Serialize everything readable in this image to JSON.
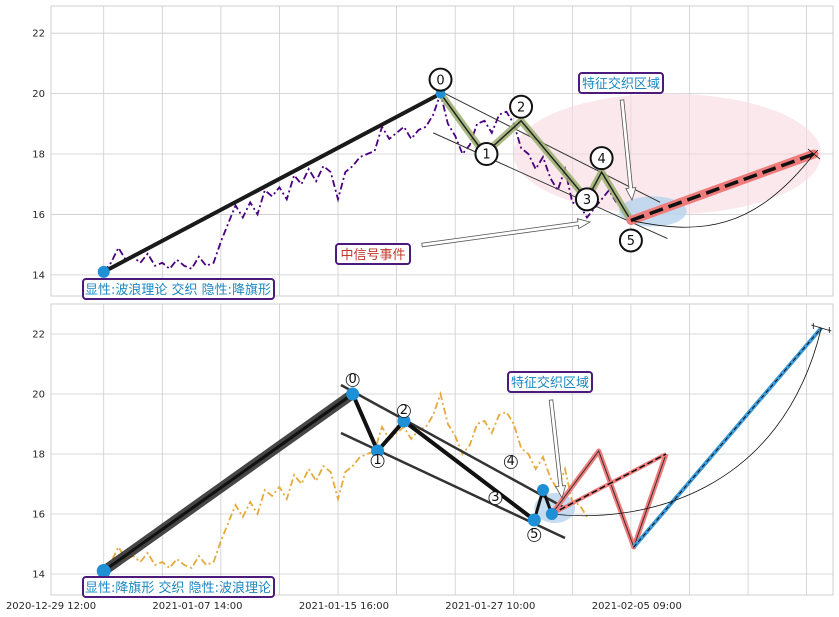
{
  "chart_data": [
    {
      "type": "line",
      "panel": "top",
      "ylim": [
        13.3,
        22.9
      ],
      "xlim": [
        -2.6,
        50.8
      ],
      "yticks": [
        14,
        16,
        18,
        20,
        22
      ],
      "grid": true,
      "price_series": {
        "style": "dash-dot",
        "color": "#4b0082",
        "x": [
          1,
          1.5,
          2,
          2.5,
          3,
          3.5,
          4,
          4.5,
          5,
          5.5,
          6,
          6.5,
          7,
          7.5,
          8,
          8.5,
          9,
          9.5,
          10,
          10.5,
          11,
          11.5,
          12,
          12.5,
          13,
          13.5,
          14,
          14.5,
          15,
          15.5,
          16,
          16.5,
          17,
          17.5,
          18,
          18.5,
          19,
          19.5,
          20,
          20.5,
          21,
          21.5,
          22,
          22.5,
          23,
          23.5,
          24,
          24.5,
          25,
          25.5,
          26,
          26.5,
          27,
          27.5,
          28,
          28.5,
          29,
          29.5,
          30,
          30.5,
          31,
          31.5,
          32,
          32.5,
          33,
          33.5,
          34,
          34.5,
          35,
          35.5,
          36
        ],
        "y": [
          14.1,
          14.4,
          14.9,
          14.5,
          14.6,
          14.4,
          14.7,
          14.3,
          14.4,
          14.2,
          14.5,
          14.3,
          14.2,
          14.6,
          14.3,
          14.4,
          15.1,
          15.7,
          16.3,
          15.9,
          16.4,
          16.0,
          16.8,
          16.6,
          16.9,
          16.5,
          17.3,
          17.0,
          17.5,
          17.1,
          17.6,
          17.4,
          16.5,
          17.4,
          17.6,
          17.9,
          18.0,
          18.1,
          18.9,
          18.5,
          18.7,
          18.9,
          18.5,
          18.8,
          18.9,
          19.3,
          20.0,
          19.0,
          18.6,
          18.0,
          18.3,
          19.0,
          19.1,
          18.7,
          19.3,
          19.4,
          19.0,
          18.2,
          18.0,
          17.5,
          17.9,
          17.2,
          16.8,
          17.5,
          16.4,
          16.3,
          15.9,
          16.2,
          16.5,
          16.8,
          16.4
        ]
      },
      "wave_points": [
        {
          "label": "0",
          "x": 24,
          "y": 20.0
        },
        {
          "label": "1",
          "x": 27,
          "y": 18.0
        },
        {
          "label": "2",
          "x": 29.5,
          "y": 19.1
        },
        {
          "label": "3",
          "x": 34,
          "y": 16.5
        },
        {
          "label": "4",
          "x": 35,
          "y": 17.4
        },
        {
          "label": "5",
          "x": 37,
          "y": 15.8
        }
      ],
      "trend_line": {
        "x": [
          1,
          24
        ],
        "y": [
          14.1,
          20.0
        ]
      },
      "channel_upper": {
        "x": [
          23.5,
          39
        ],
        "y": [
          20.2,
          16.4
        ]
      },
      "channel_lower": {
        "x": [
          23.5,
          39.5
        ],
        "y": [
          18.7,
          15.2
        ]
      },
      "forecast": {
        "x": [
          37,
          49.5
        ],
        "y": [
          15.8,
          18.0
        ]
      },
      "target_point": {
        "x": 49.5,
        "y": 18.0
      },
      "ellipse": {
        "cx": 39.5,
        "cy": 18.0,
        "rx": 10.5,
        "ry": 2.0
      },
      "feature_zone": {
        "cx": 38.5,
        "cy": 16.1,
        "rx": 2.3,
        "ry": 0.5
      },
      "annotations": {
        "feature": "特征交织区域",
        "signal": "中信号事件",
        "bottom_label": "显性:波浪理论 交织 隐性:降旗形"
      }
    },
    {
      "type": "line",
      "panel": "bottom",
      "ylim": [
        13.3,
        23.0
      ],
      "xlim": [
        -2.6,
        50.8
      ],
      "yticks": [
        14,
        16,
        18,
        20,
        22
      ],
      "xticks": [
        {
          "x": -2.6,
          "label": "2020-12-29 12:00"
        },
        {
          "x": 7.4,
          "label": "2021-01-07 14:00"
        },
        {
          "x": 17.4,
          "label": "2021-01-15 16:00"
        },
        {
          "x": 27.4,
          "label": "2021-01-27 10:00"
        },
        {
          "x": 37.4,
          "label": "2021-02-05 09:00"
        }
      ],
      "grid": true,
      "price_series": {
        "style": "dash-dot",
        "color": "#e6a93b",
        "x": [
          1,
          1.5,
          2,
          2.5,
          3,
          3.5,
          4,
          4.5,
          5,
          5.5,
          6,
          6.5,
          7,
          7.5,
          8,
          8.5,
          9,
          9.5,
          10,
          10.5,
          11,
          11.5,
          12,
          12.5,
          13,
          13.5,
          14,
          14.5,
          15,
          15.5,
          16,
          16.5,
          17,
          17.5,
          18,
          18.5,
          19,
          19.5,
          20,
          20.5,
          21,
          21.5,
          22,
          22.5,
          23,
          23.5,
          24,
          24.5,
          25,
          25.5,
          26,
          26.5,
          27,
          27.5,
          28,
          28.5,
          29,
          29.5,
          30,
          30.5,
          31,
          31.5,
          32,
          32.5,
          33,
          33.5,
          34
        ],
        "y": [
          14.1,
          14.4,
          14.9,
          14.5,
          14.6,
          14.4,
          14.7,
          14.3,
          14.4,
          14.2,
          14.5,
          14.3,
          14.2,
          14.6,
          14.3,
          14.4,
          15.1,
          15.7,
          16.3,
          15.9,
          16.4,
          16.0,
          16.8,
          16.6,
          16.9,
          16.5,
          17.3,
          17.0,
          17.5,
          17.1,
          17.6,
          17.4,
          16.5,
          17.4,
          17.6,
          17.9,
          18.0,
          18.1,
          18.9,
          18.5,
          18.7,
          18.9,
          18.5,
          18.8,
          18.9,
          19.3,
          20.0,
          19.0,
          18.6,
          18.0,
          18.3,
          19.0,
          19.1,
          18.7,
          19.3,
          19.4,
          19.0,
          18.2,
          18.0,
          17.5,
          17.9,
          17.2,
          16.8,
          17.5,
          16.4,
          16.3,
          15.9
        ]
      },
      "wave_points": [
        {
          "label": "0",
          "x": 18,
          "y": 20.0
        },
        {
          "label": "1",
          "x": 19.7,
          "y": 18.1
        },
        {
          "label": "2",
          "x": 21.5,
          "y": 19.1
        },
        {
          "label": "3",
          "x": 28.5,
          "y": 16.4
        },
        {
          "label": "4",
          "x": 28.8,
          "y": 17.4
        },
        {
          "label": "5",
          "x": 30.4,
          "y": 15.8
        }
      ],
      "inner_points": [
        {
          "x": 31.0,
          "y": 16.8
        },
        {
          "x": 31.6,
          "y": 16.0
        }
      ],
      "trend_line": {
        "x": [
          1,
          18
        ],
        "y": [
          14.1,
          20.0
        ]
      },
      "zigzag": {
        "x": [
          18,
          19.7,
          21.5,
          30.4
        ],
        "y": [
          20.0,
          18.1,
          19.1,
          15.8
        ]
      },
      "channel_upper": {
        "x": [
          17.2,
          32.5
        ],
        "y": [
          20.3,
          16.2
        ]
      },
      "channel_lower": {
        "x": [
          17.2,
          32.5
        ],
        "y": [
          18.7,
          15.2
        ]
      },
      "forecast_red_zigzag": {
        "x": [
          31.6,
          34.8,
          37.2,
          39.4
        ],
        "y": [
          16.0,
          18.1,
          14.9,
          18.0
        ]
      },
      "forecast_red_line": {
        "x": [
          31.6,
          39.4
        ],
        "y": [
          16.0,
          18.0
        ]
      },
      "forecast_blue": {
        "x": [
          37.2,
          50.0
        ],
        "y": [
          14.9,
          22.2
        ]
      },
      "target_point": {
        "x": 50.0,
        "y": 22.2
      },
      "feature_zone": {
        "cx": 31.8,
        "cy": 16.2,
        "rx": 1.4,
        "ry": 0.5
      },
      "annotations": {
        "feature": "特征交织区域",
        "bottom_label": "显性:降旗形 交织 隐性:波浪理论"
      }
    }
  ],
  "colors": {
    "grid": "#cccccc",
    "main_line": "#1a1a1a",
    "point_blue": "#1f8fd6",
    "wave_green": "#9aae6e",
    "forecast_red": "#f07b7b",
    "forecast_blue": "#3a9ad9",
    "ellipse_pink": "#f6d9df",
    "zone_blue": "#b7d3ee",
    "box_border": "#4b1a7a",
    "box_text_blue": "#1b87c2",
    "box_text_red": "#c0392b"
  }
}
